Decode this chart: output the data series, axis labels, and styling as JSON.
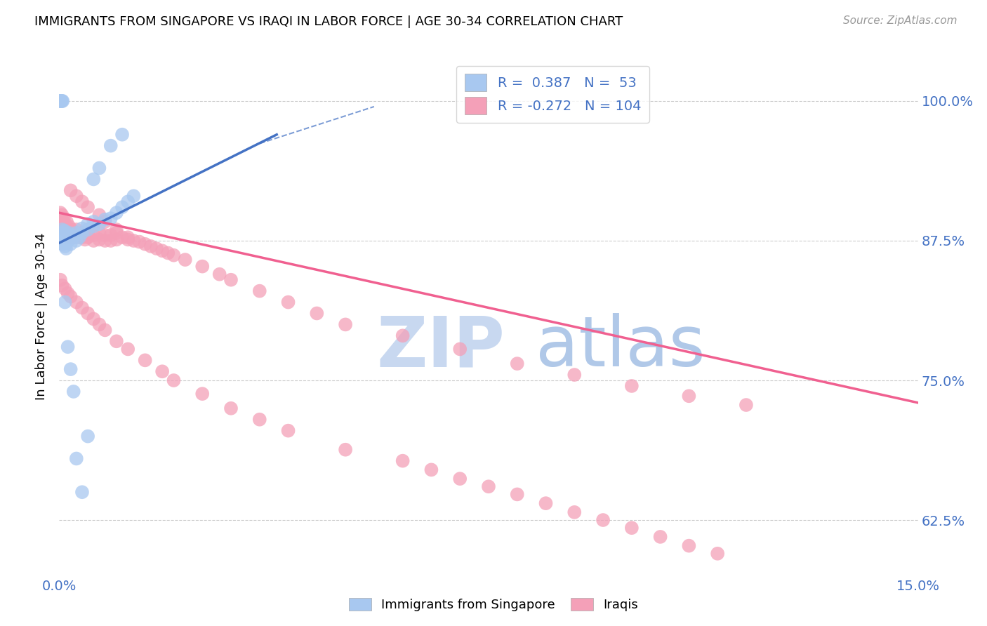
{
  "title": "IMMIGRANTS FROM SINGAPORE VS IRAQI IN LABOR FORCE | AGE 30-34 CORRELATION CHART",
  "source_text": "Source: ZipAtlas.com",
  "ylabel_label": "In Labor Force | Age 30-34",
  "ytick_labels": [
    "62.5%",
    "75.0%",
    "87.5%",
    "100.0%"
  ],
  "ytick_values": [
    0.625,
    0.75,
    0.875,
    1.0
  ],
  "xlim": [
    0.0,
    0.15
  ],
  "ylim": [
    0.575,
    1.04
  ],
  "color_singapore": "#A8C8F0",
  "color_iraq": "#F4A0B8",
  "color_singapore_line": "#4472C4",
  "color_iraq_line": "#F06090",
  "watermark_zip_color": "#C8D8F0",
  "watermark_atlas_color": "#B0C8E8",
  "legend_r1_val": "0.387",
  "legend_n1": "53",
  "legend_r2_val": "-0.272",
  "legend_n2": "104",
  "singapore_x": [
    0.0002,
    0.0004,
    0.0005,
    0.0006,
    0.0007,
    0.0008,
    0.0009,
    0.001,
    0.001,
    0.0012,
    0.0013,
    0.0014,
    0.0015,
    0.0016,
    0.0017,
    0.0018,
    0.002,
    0.002,
    0.0022,
    0.0025,
    0.003,
    0.003,
    0.0035,
    0.004,
    0.004,
    0.005,
    0.005,
    0.006,
    0.006,
    0.007,
    0.008,
    0.009,
    0.01,
    0.011,
    0.012,
    0.013,
    0.0001,
    0.0002,
    0.0003,
    0.0004,
    0.0005,
    0.0006,
    0.001,
    0.0015,
    0.002,
    0.0025,
    0.003,
    0.004,
    0.005,
    0.006,
    0.007,
    0.009,
    0.011
  ],
  "singapore_y": [
    0.878,
    0.882,
    0.885,
    0.872,
    0.88,
    0.876,
    0.884,
    0.87,
    0.875,
    0.868,
    0.873,
    0.878,
    0.88,
    0.875,
    0.882,
    0.877,
    0.872,
    0.878,
    0.88,
    0.878,
    0.875,
    0.882,
    0.878,
    0.882,
    0.886,
    0.885,
    0.89,
    0.888,
    0.892,
    0.89,
    0.894,
    0.895,
    0.9,
    0.905,
    0.91,
    0.915,
    1.0,
    1.0,
    1.0,
    1.0,
    1.0,
    1.0,
    0.82,
    0.78,
    0.76,
    0.74,
    0.68,
    0.65,
    0.7,
    0.93,
    0.94,
    0.96,
    0.97
  ],
  "iraq_x": [
    0.0002,
    0.0003,
    0.0004,
    0.0005,
    0.0006,
    0.0007,
    0.0008,
    0.001,
    0.001,
    0.0012,
    0.0013,
    0.0015,
    0.0016,
    0.0017,
    0.002,
    0.002,
    0.0022,
    0.0025,
    0.003,
    0.003,
    0.0035,
    0.004,
    0.004,
    0.0045,
    0.005,
    0.005,
    0.006,
    0.006,
    0.007,
    0.007,
    0.008,
    0.008,
    0.009,
    0.009,
    0.01,
    0.01,
    0.011,
    0.012,
    0.013,
    0.014,
    0.015,
    0.016,
    0.017,
    0.018,
    0.019,
    0.02,
    0.022,
    0.025,
    0.028,
    0.03,
    0.035,
    0.04,
    0.045,
    0.05,
    0.06,
    0.07,
    0.08,
    0.09,
    0.1,
    0.11,
    0.12,
    0.0002,
    0.0005,
    0.001,
    0.0015,
    0.002,
    0.003,
    0.004,
    0.005,
    0.006,
    0.007,
    0.008,
    0.01,
    0.012,
    0.015,
    0.018,
    0.02,
    0.025,
    0.03,
    0.035,
    0.04,
    0.05,
    0.06,
    0.065,
    0.07,
    0.075,
    0.08,
    0.085,
    0.09,
    0.095,
    0.1,
    0.105,
    0.11,
    0.115,
    0.002,
    0.003,
    0.004,
    0.005,
    0.007,
    0.008,
    0.01,
    0.012
  ],
  "iraq_y": [
    0.9,
    0.895,
    0.892,
    0.898,
    0.893,
    0.888,
    0.895,
    0.89,
    0.885,
    0.888,
    0.892,
    0.885,
    0.882,
    0.888,
    0.882,
    0.878,
    0.885,
    0.882,
    0.878,
    0.885,
    0.88,
    0.878,
    0.882,
    0.876,
    0.878,
    0.882,
    0.875,
    0.88,
    0.876,
    0.882,
    0.875,
    0.88,
    0.875,
    0.88,
    0.876,
    0.882,
    0.878,
    0.876,
    0.875,
    0.874,
    0.872,
    0.87,
    0.868,
    0.866,
    0.864,
    0.862,
    0.858,
    0.852,
    0.845,
    0.84,
    0.83,
    0.82,
    0.81,
    0.8,
    0.79,
    0.778,
    0.765,
    0.755,
    0.745,
    0.736,
    0.728,
    0.84,
    0.835,
    0.832,
    0.828,
    0.825,
    0.82,
    0.815,
    0.81,
    0.805,
    0.8,
    0.795,
    0.785,
    0.778,
    0.768,
    0.758,
    0.75,
    0.738,
    0.725,
    0.715,
    0.705,
    0.688,
    0.678,
    0.67,
    0.662,
    0.655,
    0.648,
    0.64,
    0.632,
    0.625,
    0.618,
    0.61,
    0.602,
    0.595,
    0.92,
    0.915,
    0.91,
    0.905,
    0.898,
    0.892,
    0.885,
    0.878
  ]
}
